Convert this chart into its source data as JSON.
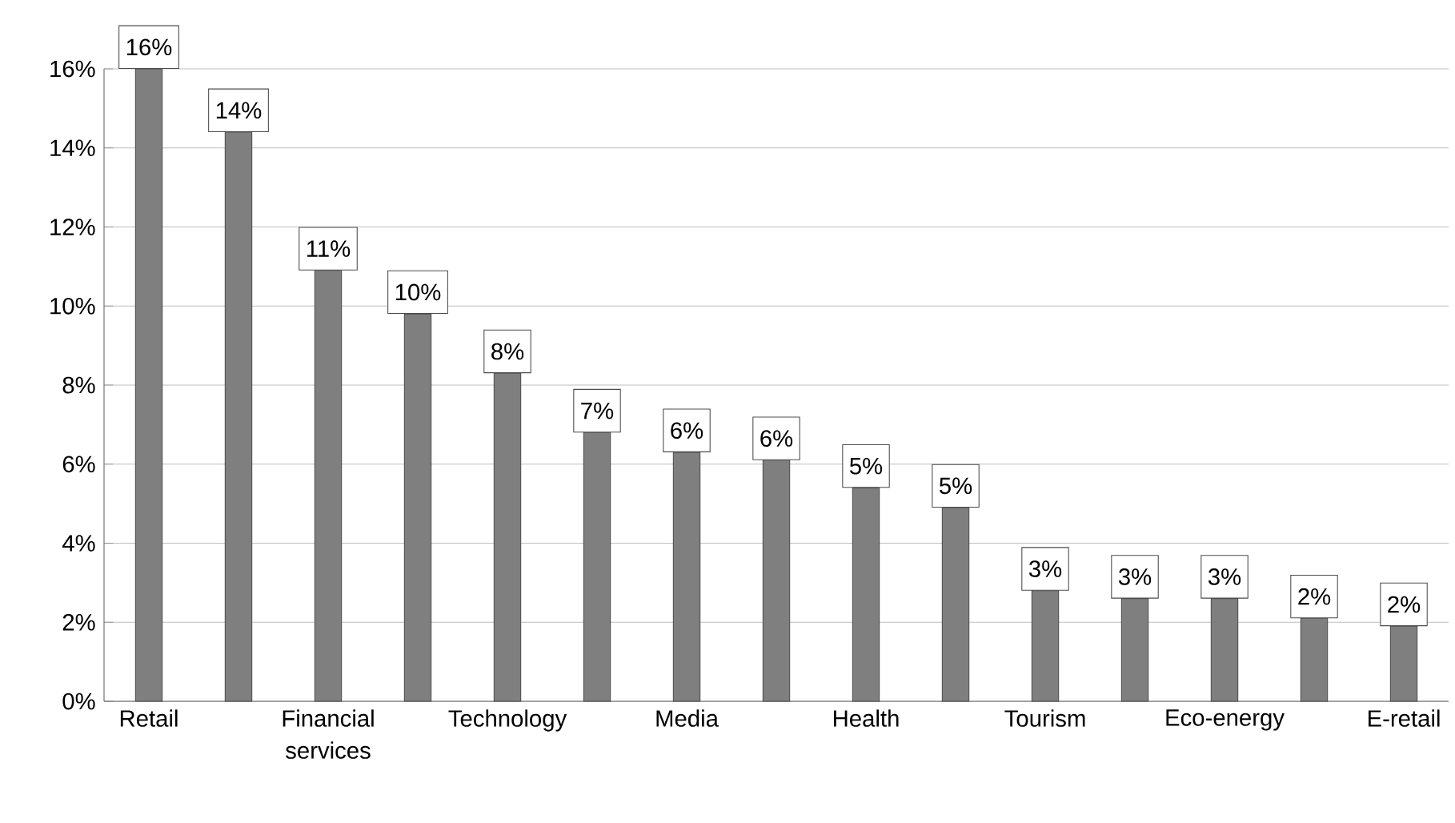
{
  "chart_data": {
    "type": "bar",
    "categories": [
      "Retail",
      null,
      "Financial services",
      null,
      "Technology",
      null,
      "Media",
      null,
      "Health",
      null,
      "Tourism",
      null,
      "Eco-energy",
      null,
      "E-retail"
    ],
    "values": [
      16.0,
      14.4,
      10.9,
      9.8,
      8.3,
      6.8,
      6.3,
      6.1,
      5.4,
      4.9,
      2.8,
      2.6,
      2.6,
      2.1,
      1.9
    ],
    "value_labels": [
      "16%",
      "14%",
      "11%",
      "10%",
      "8%",
      "7%",
      "6%",
      "6%",
      "5%",
      "5%",
      "3%",
      "3%",
      "3%",
      "2%",
      "2%"
    ],
    "color": "#7f7f7f",
    "ylim": [
      0,
      16
    ],
    "yticks": [
      {
        "value": 0,
        "label": "0%"
      },
      {
        "value": 2,
        "label": "2%"
      },
      {
        "value": 4,
        "label": "4%"
      },
      {
        "value": 6,
        "label": "6%"
      },
      {
        "value": 8,
        "label": "8%"
      },
      {
        "value": 10,
        "label": "10%"
      },
      {
        "value": 12,
        "label": "12%"
      },
      {
        "value": 14,
        "label": "14%"
      },
      {
        "value": 16,
        "label": "16%"
      }
    ],
    "grid": "y"
  }
}
